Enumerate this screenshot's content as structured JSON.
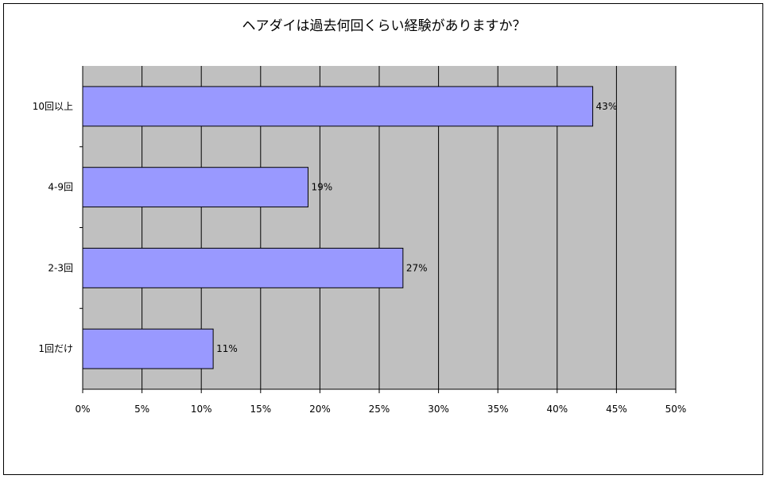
{
  "chart_data": {
    "type": "bar",
    "orientation": "horizontal",
    "title": "ヘアダイは過去何回くらい経験がありますか？",
    "categories": [
      "10回以上",
      "4-9回",
      "2-3回",
      "1回だけ"
    ],
    "values": [
      43,
      19,
      27,
      11
    ],
    "value_labels": [
      "43%",
      "19%",
      "27%",
      "11%"
    ],
    "xlim": [
      0,
      50
    ],
    "x_ticks": [
      0,
      5,
      10,
      15,
      20,
      25,
      30,
      35,
      40,
      45,
      50
    ],
    "x_tick_labels": [
      "0%",
      "5%",
      "10%",
      "15%",
      "20%",
      "25%",
      "30%",
      "35%",
      "40%",
      "45%",
      "50%"
    ],
    "grid": true,
    "colors": {
      "bar": "#9999ff",
      "plot_background": "#c0c0c0",
      "gridline": "#000000"
    }
  }
}
